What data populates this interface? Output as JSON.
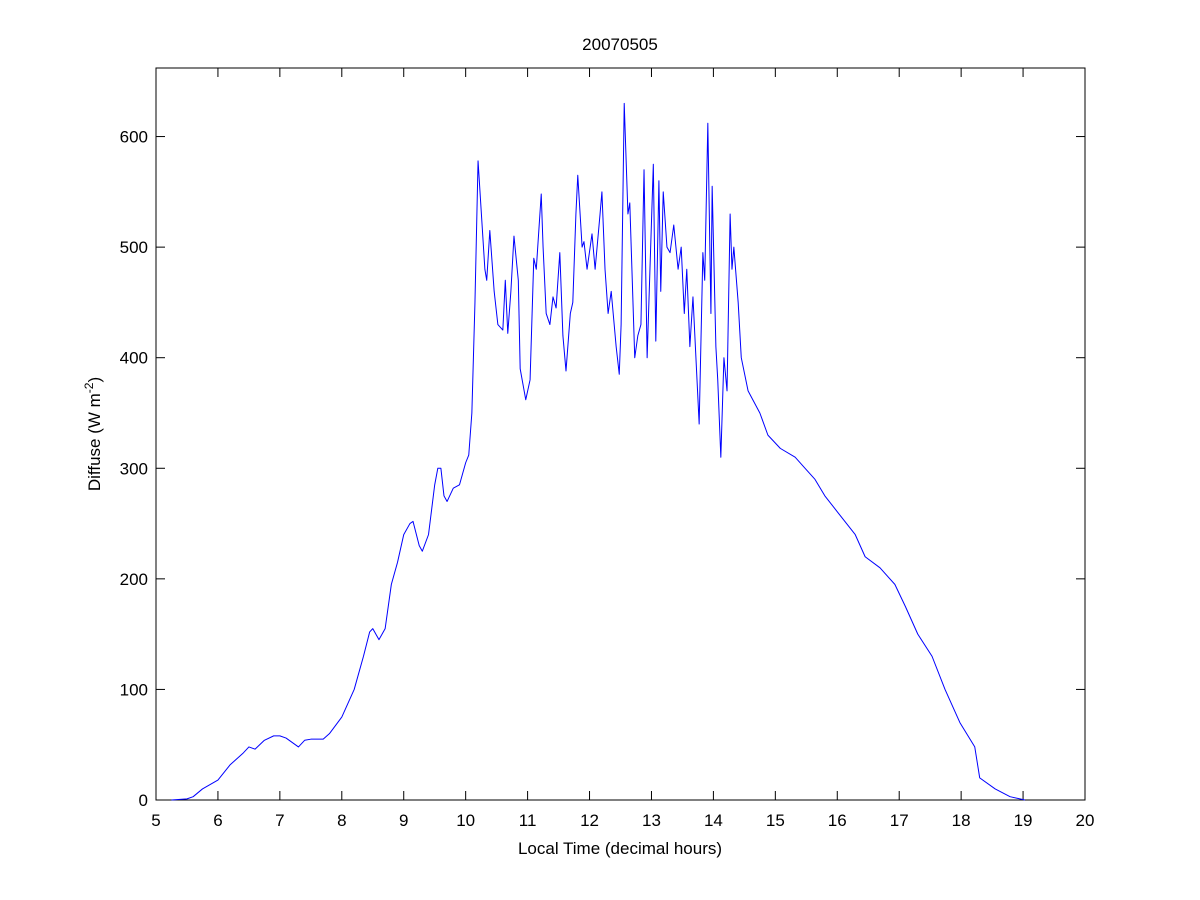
{
  "chart_data": {
    "type": "line",
    "title": "20070505",
    "xlabel": "Local Time (decimal hours)",
    "ylabel": {
      "text": "Diffuse (W m",
      "sup": "-2",
      "close": ")"
    },
    "color": "#0000ff",
    "xlim": [
      5,
      20
    ],
    "xticks": [
      5,
      6,
      7,
      8,
      9,
      10,
      11,
      12,
      13,
      14,
      15,
      16,
      17,
      18,
      19,
      20
    ],
    "ylim": [
      0,
      662
    ],
    "yticks": [
      0,
      100,
      200,
      300,
      400,
      500,
      600
    ],
    "box": true,
    "x": [
      5.25,
      5.5,
      5.6,
      5.75,
      6.0,
      6.2,
      6.4,
      6.5,
      6.6,
      6.75,
      6.9,
      7.0,
      7.1,
      7.3,
      7.4,
      7.5,
      7.7,
      7.8,
      8.0,
      8.2,
      8.35,
      8.45,
      8.5,
      8.6,
      8.7,
      8.8,
      8.9,
      9.0,
      9.1,
      9.15,
      9.25,
      9.3,
      9.4,
      9.5,
      9.55,
      9.6,
      9.65,
      9.7,
      9.8,
      9.9,
      10.0,
      10.05,
      10.1,
      10.15,
      10.2,
      10.31,
      10.34,
      10.39,
      10.46,
      10.52,
      10.6,
      10.64,
      10.68,
      10.73,
      10.78,
      10.85,
      10.88,
      10.97,
      11.04,
      11.1,
      11.14,
      11.22,
      11.25,
      11.3,
      11.36,
      11.41,
      11.46,
      11.52,
      11.57,
      11.62,
      11.69,
      11.73,
      11.78,
      11.81,
      11.88,
      11.91,
      11.96,
      12.04,
      12.09,
      12.17,
      12.2,
      12.25,
      12.3,
      12.35,
      12.43,
      12.48,
      12.51,
      12.56,
      12.62,
      12.65,
      12.69,
      12.73,
      12.78,
      12.83,
      12.88,
      12.93,
      13.03,
      13.07,
      13.12,
      13.15,
      13.19,
      13.25,
      13.3,
      13.36,
      13.43,
      13.48,
      13.53,
      13.57,
      13.62,
      13.67,
      13.77,
      13.83,
      13.86,
      13.91,
      13.96,
      13.98,
      14.04,
      14.07,
      14.12,
      14.17,
      14.22,
      14.27,
      14.3,
      14.33,
      14.4,
      14.45,
      14.56,
      14.75,
      14.88,
      15.08,
      15.32,
      15.48,
      15.64,
      15.8,
      16.01,
      16.29,
      16.45,
      16.69,
      16.93,
      17.1,
      17.3,
      17.53,
      17.74,
      17.98,
      18.22,
      18.3,
      18.55,
      18.79,
      19.03
    ],
    "values": [
      0,
      1,
      3,
      10,
      18,
      32,
      42,
      48,
      46,
      54,
      58,
      58,
      56,
      48,
      54,
      55,
      55,
      60,
      75,
      100,
      130,
      152,
      155,
      145,
      155,
      195,
      215,
      240,
      250,
      252,
      230,
      225,
      240,
      285,
      300,
      300,
      275,
      270,
      282,
      285,
      305,
      312,
      350,
      450,
      578,
      480,
      470,
      515,
      460,
      430,
      425,
      470,
      422,
      460,
      510,
      470,
      390,
      362,
      380,
      490,
      480,
      548,
      500,
      440,
      430,
      455,
      445,
      495,
      420,
      388,
      440,
      450,
      530,
      565,
      500,
      505,
      480,
      512,
      480,
      530,
      550,
      480,
      440,
      460,
      410,
      385,
      430,
      630,
      530,
      540,
      470,
      400,
      420,
      430,
      570,
      400,
      575,
      415,
      560,
      460,
      550,
      500,
      495,
      520,
      480,
      500,
      440,
      480,
      410,
      455,
      340,
      495,
      470,
      612,
      440,
      555,
      410,
      380,
      310,
      400,
      370,
      530,
      480,
      500,
      450,
      400,
      370,
      350,
      330,
      318,
      310,
      300,
      290,
      275,
      260,
      240,
      220,
      210,
      195,
      175,
      150,
      130,
      100,
      70,
      48,
      20,
      10,
      3,
      0
    ]
  }
}
